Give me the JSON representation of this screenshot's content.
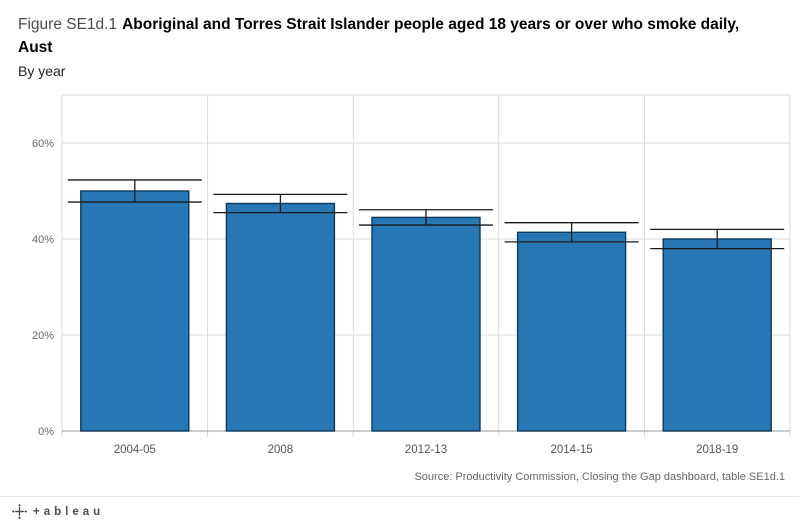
{
  "title": {
    "prefix": "Figure SE1d.1",
    "bold": "Aboriginal and Torres Strait Islander people aged 18 years or over who smoke daily,",
    "bold2": "Aust",
    "subtitle": "By year"
  },
  "source": "Source: Productivity Commission, Closing the Gap dashboard, table SE1d.1",
  "footer": {
    "logo_text": "+ableau"
  },
  "colors": {
    "bar": "#2777b4",
    "bar_border": "#0d3a5c",
    "error": "#1a1a1a",
    "grid": "#d9d9d9",
    "axis": "#9a9a9a",
    "tick_label": "#666666",
    "x_label": "#555555"
  },
  "chart_data": {
    "type": "bar",
    "title": "Figure SE1d.1 Aboriginal and Torres Strait Islander people aged 18 years or over who smoke daily, Aust",
    "subtitle": "By year",
    "categories": [
      "2004-05",
      "2008",
      "2012-13",
      "2014-15",
      "2018-19"
    ],
    "values": [
      50.0,
      47.4,
      44.5,
      41.4,
      40.0
    ],
    "ci_upper": [
      52.3,
      49.3,
      46.1,
      43.4,
      42.0
    ],
    "ci_lower": [
      47.7,
      45.5,
      42.9,
      39.4,
      38.0
    ],
    "xlabel": "",
    "ylabel": "",
    "ylim": [
      0,
      70
    ],
    "yticks": [
      0,
      20,
      40,
      60
    ],
    "ytick_labels": [
      "0%",
      "20%",
      "40%",
      "60%"
    ],
    "grid": "horizontal-and-pane-dividers",
    "legend": "none"
  }
}
